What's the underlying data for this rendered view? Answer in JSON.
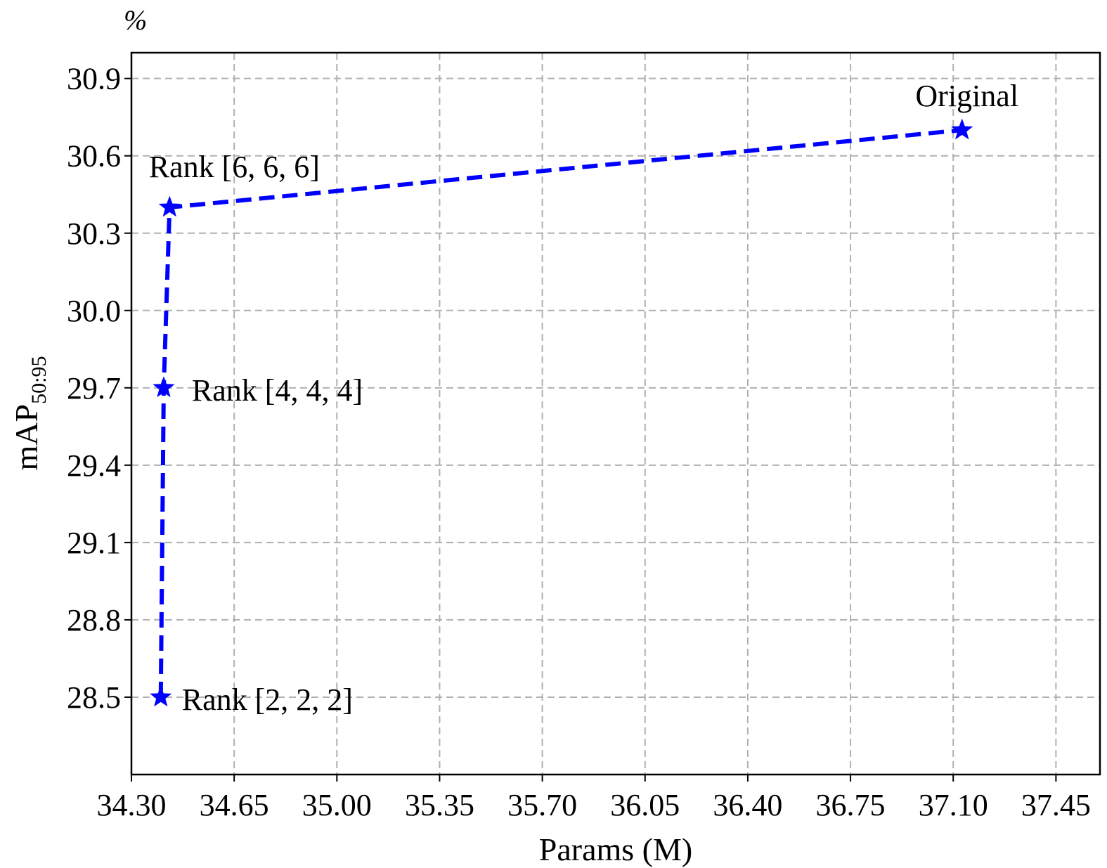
{
  "chart_data": {
    "type": "line",
    "title": "",
    "xlabel": "Params (M)",
    "ylabel": "mAP",
    "ylabel_subscript": "50:95",
    "yunit": "%",
    "xlim": [
      34.3,
      37.6
    ],
    "ylim": [
      28.2,
      31.0
    ],
    "xticks": [
      "34.30",
      "34.65",
      "35.00",
      "35.35",
      "35.70",
      "36.05",
      "36.40",
      "36.75",
      "37.10",
      "37.45"
    ],
    "yticks": [
      "28.5",
      "28.8",
      "29.1",
      "29.4",
      "29.7",
      "30.0",
      "30.3",
      "30.6",
      "30.9"
    ],
    "grid": true,
    "series": [
      {
        "color": "#0000ff",
        "line_style": "dashed",
        "marker": "star",
        "points": [
          {
            "x": 34.4,
            "y": 28.5,
            "label": "Rank [2, 2, 2]"
          },
          {
            "x": 34.41,
            "y": 29.7,
            "label": "Rank [4, 4, 4]"
          },
          {
            "x": 34.43,
            "y": 30.4,
            "label": "Rank [6, 6, 6]"
          },
          {
            "x": 37.13,
            "y": 30.7,
            "label": "Original"
          }
        ]
      }
    ]
  }
}
